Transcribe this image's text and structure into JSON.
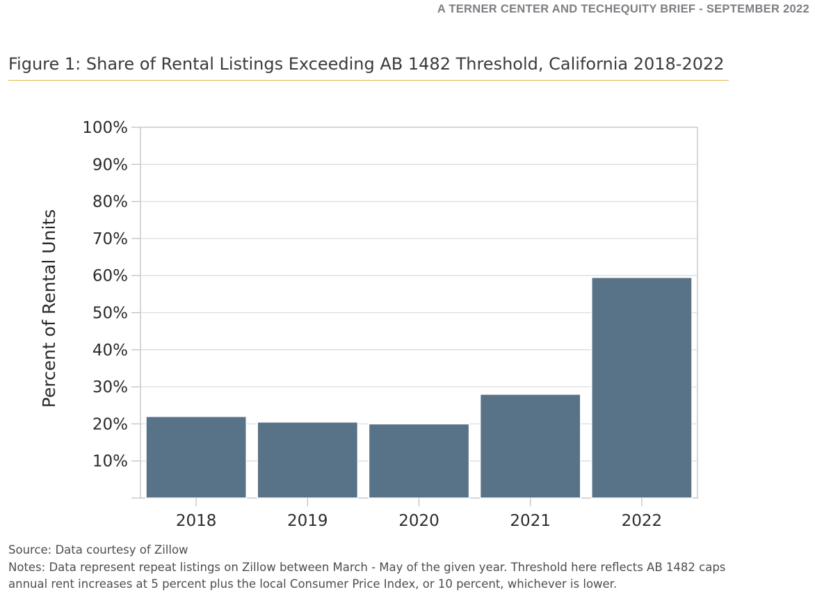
{
  "header": {
    "brief_label": "A TERNER CENTER AND TECHEQUITY BRIEF - SEPTEMBER 2022"
  },
  "figure": {
    "title": "Figure 1: Share of Rental Listings Exceeding AB 1482 Threshold, California 2018-2022"
  },
  "chart_data": {
    "type": "bar",
    "categories": [
      "2018",
      "2019",
      "2020",
      "2021",
      "2022"
    ],
    "values": [
      22,
      20.5,
      20,
      28,
      59.5
    ],
    "ylabel": "Percent of Rental Units",
    "xlabel": "",
    "ylim": [
      0,
      100
    ],
    "yticks": [
      "",
      "10%",
      "20%",
      "30%",
      "40%",
      "50%",
      "60%",
      "70%",
      "80%",
      "90%",
      "100%"
    ],
    "grid": true,
    "bar_color": "#587287",
    "grid_color": "#dcdcdc",
    "axis_color": "#bcbcbc"
  },
  "notes": {
    "source": "Source: Data courtesy of Zillow",
    "line1": "Notes:  Data represent repeat listings on Zillow between March - May of the given year. Threshold here reflects AB 1482 caps",
    "line2": "annual rent increases at 5 percent plus the local Consumer Price Index, or 10 percent, whichever is lower."
  },
  "colors": {
    "title_rule": "#e8b64a",
    "header_text": "#7b7e82",
    "body_text": "#3a3a3a"
  }
}
